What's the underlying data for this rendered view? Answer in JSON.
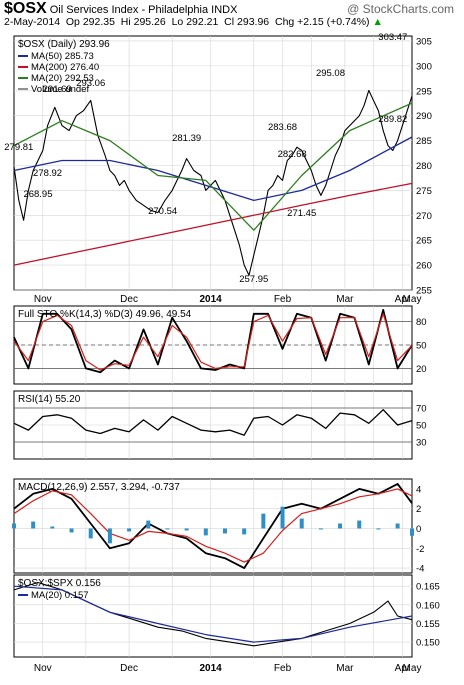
{
  "header": {
    "symbol": "$OSX",
    "name": "Oil Services Index - Philadelphia INDX",
    "watermark": "@ StockCharts.com",
    "date": "2-May-2014",
    "op_label": "Op",
    "op": "292.35",
    "hi_label": "Hi",
    "hi": "295.26",
    "lo_label": "Lo",
    "lo": "292.21",
    "cl_label": "Cl",
    "cl": "293.96",
    "chg_label": "Chg",
    "chg": "+2.15 (+0.74%)",
    "chg_arrow": "▲"
  },
  "colors": {
    "background": "#ffffff",
    "price": "#000000",
    "ma50": "#1c2a9c",
    "ma200": "#c0102a",
    "ma20": "#2e7d1e",
    "up": "#00a000",
    "hist": "#2e8fc4",
    "grid": "#d6d6d6",
    "sto_d": "#d4201c"
  },
  "chart_data": [
    {
      "type": "candlestick-line",
      "title": "$OSX (Daily) 293.96",
      "legend": [
        {
          "label": "MA(50) 285.73",
          "color": "#1c2a9c"
        },
        {
          "label": "MA(200) 276.40",
          "color": "#c0102a"
        },
        {
          "label": "MA(20) 292.53",
          "color": "#2e7d1e"
        },
        {
          "label": "Volume undef",
          "color": "#909090"
        }
      ],
      "ylim": [
        255,
        306
      ],
      "y_ticks": [
        255,
        260,
        265,
        270,
        275,
        280,
        285,
        290,
        295,
        300,
        305
      ],
      "x_labels": [
        "Nov",
        "Dec",
        "2014",
        "Feb",
        "Mar",
        "Apr",
        "May"
      ],
      "series": [
        {
          "name": "$OSX",
          "t": [
            0,
            2,
            4,
            6,
            8,
            10,
            12,
            14,
            17,
            20,
            23,
            26,
            29,
            32,
            35,
            38,
            40,
            42,
            44,
            46,
            48,
            51,
            54,
            57,
            60,
            63,
            66,
            68,
            70,
            72,
            75,
            78,
            80,
            82,
            84,
            86,
            88,
            90,
            92,
            94,
            96,
            98,
            100,
            102,
            104,
            106,
            108,
            110,
            112,
            114,
            116,
            118,
            120,
            122,
            124,
            126,
            128,
            130,
            132,
            134,
            136,
            138,
            140,
            142,
            144,
            146,
            148,
            150,
            152,
            154,
            156,
            158,
            160,
            162,
            164,
            166
          ],
          "values": [
            279.81,
            273,
            269,
            275,
            279,
            281,
            283,
            288,
            291.69,
            288,
            287,
            290,
            291,
            293.06,
            286,
            282,
            279,
            278,
            276,
            277,
            275,
            273,
            272,
            271,
            270.54,
            273,
            275,
            277,
            279,
            281.39,
            279,
            278,
            275,
            276,
            277,
            275,
            273,
            270,
            267,
            264,
            260,
            257.95,
            262,
            266,
            270,
            275,
            276,
            278,
            277,
            281,
            282,
            283.68,
            283,
            281,
            279,
            276,
            274,
            276,
            279,
            282,
            284,
            287,
            288,
            289,
            290,
            292,
            295.08,
            293,
            291,
            287,
            284,
            283,
            285,
            288,
            291,
            293.96
          ]
        },
        {
          "name": "MA(50)",
          "t": [
            0,
            20,
            40,
            60,
            80,
            100,
            120,
            140,
            166
          ],
          "values": [
            279,
            281,
            281,
            279,
            276,
            273,
            275,
            279,
            285.73
          ]
        },
        {
          "name": "MA(200)",
          "t": [
            0,
            20,
            40,
            60,
            80,
            100,
            120,
            140,
            166
          ],
          "values": [
            260,
            262,
            264,
            266,
            268,
            270,
            272,
            274,
            276.4
          ]
        },
        {
          "name": "MA(20)",
          "t": [
            0,
            20,
            40,
            60,
            80,
            100,
            120,
            140,
            166
          ],
          "values": [
            284,
            289,
            285,
            278,
            277,
            267,
            278,
            287,
            292.53
          ]
        }
      ],
      "annotations": [
        "279.81",
        "278.92",
        "268.95",
        "291.69",
        "293.06",
        "281.39",
        "270.54",
        "257.95",
        "271.45",
        "283.68",
        "282.68",
        "295.08",
        "303.47",
        "289.82"
      ]
    },
    {
      "type": "line",
      "title": "Full STO %K(14,3) %D(3) 49.96, 49.54",
      "ylim": [
        0,
        100
      ],
      "y_ticks": [
        20,
        50,
        80
      ],
      "reference_lines": [
        20,
        50,
        80
      ],
      "series": [
        {
          "name": "%K",
          "t": [
            0,
            6,
            12,
            18,
            24,
            30,
            36,
            42,
            48,
            54,
            60,
            66,
            72,
            78,
            84,
            90,
            96,
            100,
            106,
            112,
            118,
            124,
            130,
            136,
            142,
            148,
            154,
            160,
            166
          ],
          "values": [
            60,
            20,
            90,
            90,
            70,
            20,
            15,
            30,
            20,
            70,
            25,
            85,
            55,
            20,
            18,
            25,
            20,
            90,
            90,
            45,
            90,
            85,
            30,
            90,
            85,
            25,
            95,
            20,
            49.96
          ]
        },
        {
          "name": "%D",
          "t": [
            0,
            6,
            12,
            18,
            24,
            30,
            36,
            42,
            48,
            54,
            60,
            66,
            72,
            78,
            84,
            90,
            96,
            100,
            106,
            112,
            118,
            124,
            130,
            136,
            142,
            148,
            154,
            160,
            166
          ],
          "values": [
            55,
            30,
            80,
            88,
            75,
            30,
            18,
            26,
            24,
            60,
            35,
            75,
            60,
            28,
            20,
            22,
            22,
            80,
            88,
            55,
            84,
            85,
            38,
            85,
            85,
            35,
            90,
            30,
            49.54
          ]
        }
      ]
    },
    {
      "type": "line",
      "title": "RSI(14) 55.20",
      "ylim": [
        10,
        90
      ],
      "y_ticks": [
        30,
        50,
        70
      ],
      "reference_lines": [
        30,
        70
      ],
      "series": [
        {
          "name": "RSI",
          "t": [
            0,
            6,
            12,
            18,
            24,
            30,
            36,
            42,
            48,
            54,
            60,
            66,
            72,
            78,
            84,
            90,
            96,
            100,
            106,
            112,
            118,
            124,
            130,
            136,
            142,
            148,
            154,
            160,
            166
          ],
          "values": [
            52,
            44,
            60,
            62,
            58,
            44,
            40,
            46,
            42,
            56,
            44,
            60,
            52,
            44,
            42,
            44,
            38,
            58,
            60,
            50,
            62,
            58,
            46,
            64,
            62,
            52,
            68,
            50,
            55.2
          ]
        }
      ]
    },
    {
      "type": "line",
      "title": "MACD(12,26,9) 2.557, 3.294, -0.737",
      "ylim": [
        -4.5,
        5
      ],
      "y_ticks": [
        -4,
        -2,
        0,
        2,
        4
      ],
      "series": [
        {
          "name": "MACD",
          "t": [
            0,
            8,
            16,
            24,
            32,
            40,
            48,
            56,
            64,
            72,
            80,
            88,
            96,
            104,
            112,
            120,
            128,
            136,
            144,
            152,
            160,
            166
          ],
          "values": [
            2,
            3.5,
            4,
            3,
            0.5,
            -2,
            -1.5,
            0.5,
            -0.5,
            -1,
            -2.5,
            -3,
            -4,
            -1,
            2,
            2.5,
            2,
            3,
            4,
            3.5,
            4.5,
            2.557
          ]
        },
        {
          "name": "Signal",
          "t": [
            0,
            8,
            16,
            24,
            32,
            40,
            48,
            56,
            64,
            72,
            80,
            88,
            96,
            104,
            112,
            120,
            128,
            136,
            144,
            152,
            160,
            166
          ],
          "values": [
            1.5,
            2.8,
            3.8,
            3.4,
            1.5,
            -0.5,
            -1.2,
            -0.3,
            -0.5,
            -0.8,
            -1.8,
            -2.5,
            -3.4,
            -2.5,
            -0.2,
            1.5,
            2,
            2.5,
            3.2,
            3.5,
            4,
            3.294
          ]
        },
        {
          "name": "Histogram",
          "t": [
            0,
            8,
            16,
            24,
            32,
            40,
            48,
            56,
            64,
            72,
            80,
            88,
            96,
            104,
            112,
            120,
            128,
            136,
            144,
            152,
            160,
            166
          ],
          "values": [
            0.5,
            0.7,
            0.2,
            -0.4,
            -1,
            -1.5,
            -0.3,
            0.8,
            0,
            -0.2,
            -0.7,
            -0.5,
            -0.6,
            1.5,
            2.2,
            1,
            0,
            0.5,
            0.8,
            0,
            0.5,
            -0.737
          ]
        }
      ]
    },
    {
      "type": "line",
      "title": "$OSX:$SPX 0.156",
      "legend": [
        {
          "label": "MA(20) 0.157",
          "color": "#1c2a9c"
        }
      ],
      "ylim": [
        0.146,
        0.168
      ],
      "y_ticks": [
        0.15,
        0.155,
        0.16,
        0.165
      ],
      "x_labels": [
        "Nov",
        "Dec",
        "2014",
        "Feb",
        "Mar",
        "Apr",
        "May"
      ],
      "series": [
        {
          "name": "$OSX:$SPX",
          "t": [
            0,
            10,
            20,
            30,
            40,
            50,
            60,
            70,
            80,
            90,
            100,
            110,
            120,
            130,
            140,
            150,
            156,
            160,
            166
          ],
          "values": [
            0.164,
            0.166,
            0.164,
            0.161,
            0.158,
            0.156,
            0.154,
            0.153,
            0.151,
            0.15,
            0.149,
            0.15,
            0.151,
            0.153,
            0.155,
            0.158,
            0.161,
            0.157,
            0.156
          ]
        },
        {
          "name": "MA(20)",
          "t": [
            0,
            20,
            40,
            60,
            80,
            100,
            120,
            140,
            166
          ],
          "values": [
            0.165,
            0.164,
            0.158,
            0.155,
            0.152,
            0.15,
            0.151,
            0.154,
            0.157
          ]
        }
      ]
    }
  ]
}
